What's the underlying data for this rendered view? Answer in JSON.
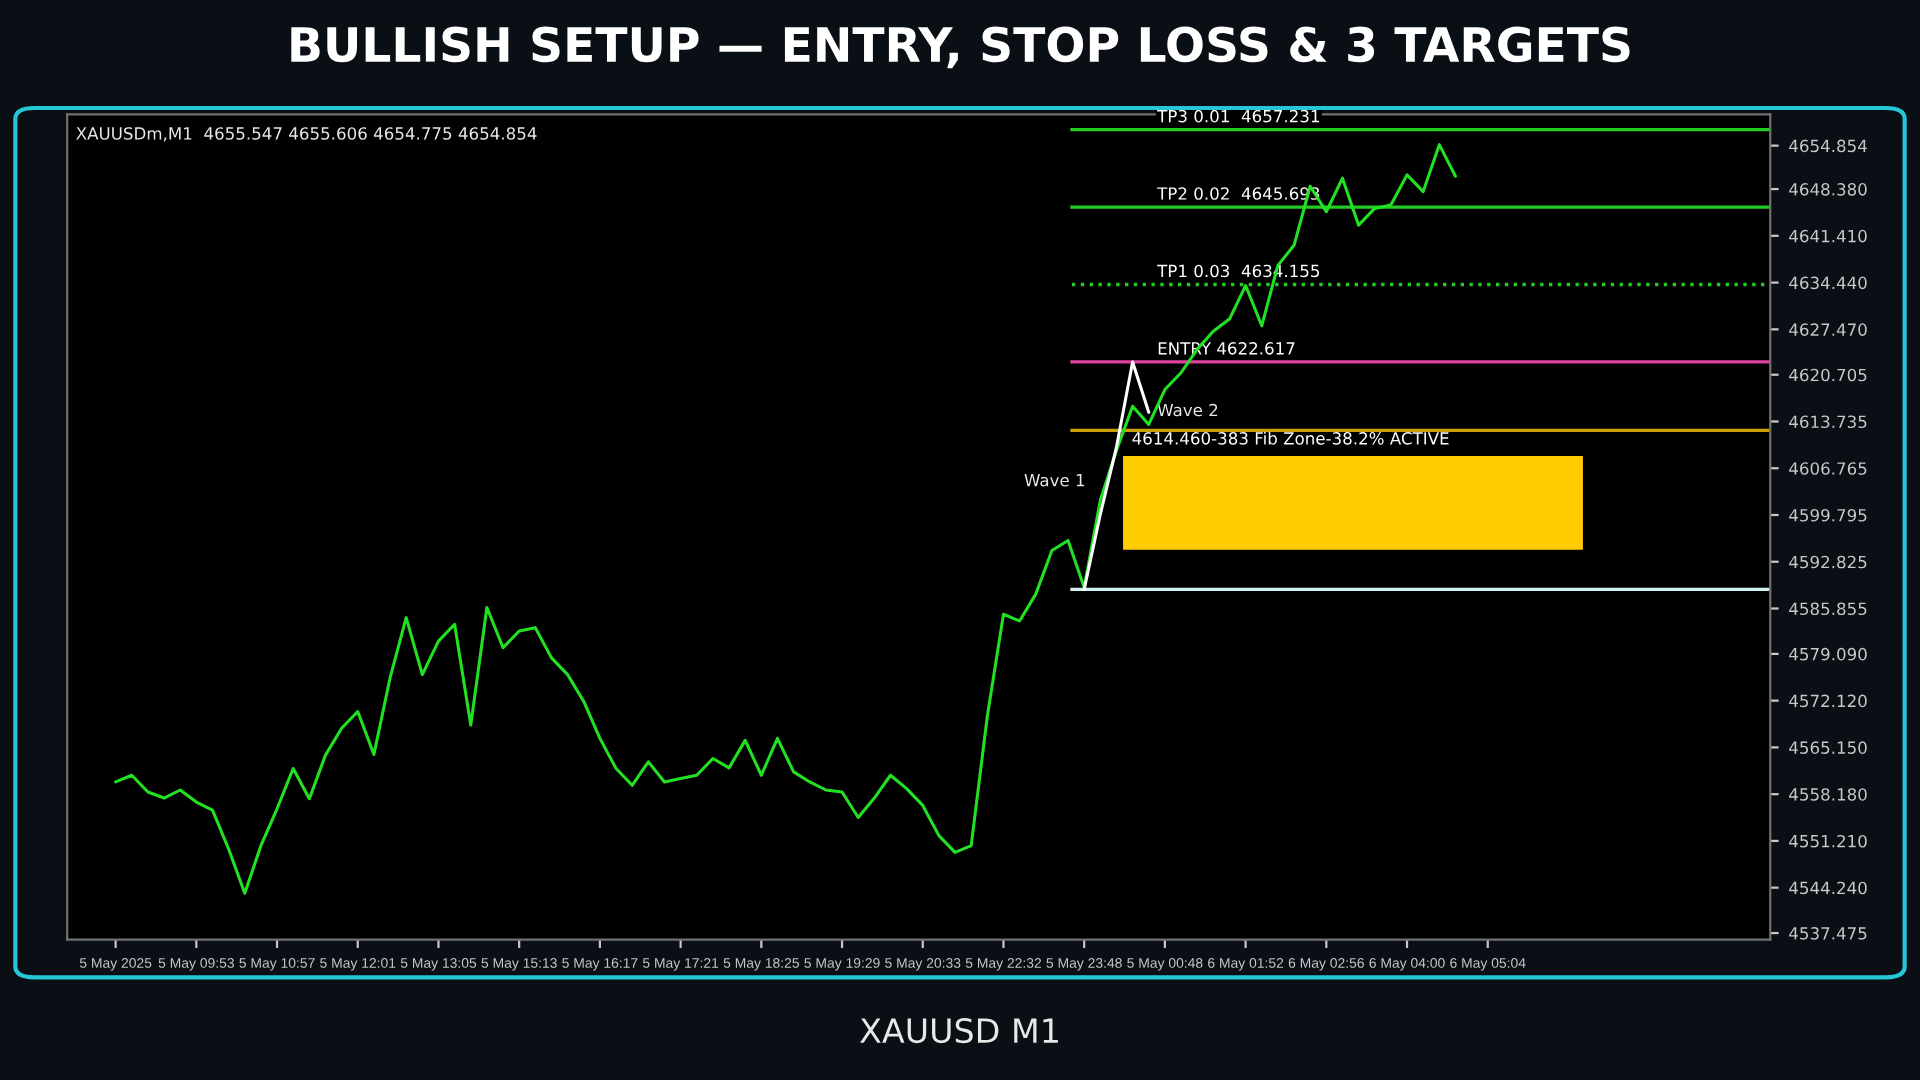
{
  "chart_data": {
    "type": "line",
    "title": "BULLISH SETUP — ENTRY, STOP LOSS & 3 TARGETS",
    "categories": [
      "5 May 2025",
      null,
      null,
      null,
      null,
      "5 May 09:53",
      null,
      null,
      null,
      null,
      "5 May 10:57",
      null,
      null,
      null,
      null,
      "5 May 12:01",
      null,
      null,
      null,
      null,
      "5 May 13:05",
      null,
      null,
      null,
      null,
      "5 May 15:13",
      null,
      null,
      null,
      null,
      "5 May 16:17",
      null,
      null,
      null,
      null,
      "5 May 17:21",
      null,
      null,
      null,
      null,
      "5 May 18:25",
      null,
      null,
      null,
      null,
      "5 May 19:29",
      null,
      null,
      null,
      null,
      "5 May 20:33",
      null,
      null,
      null,
      null,
      "5 May 22:32",
      null,
      null,
      null,
      null,
      "5 May 23:48",
      null,
      null,
      null,
      null,
      "5 May 00:48",
      null,
      null,
      null,
      null,
      "6 May 01:52",
      null,
      null,
      null,
      null,
      "6 May 02:56",
      null,
      null,
      null,
      null,
      "6 May 04:00",
      null,
      null,
      null,
      null,
      "6 May 05:04",
      null,
      null,
      null,
      null,
      null,
      null,
      null,
      null,
      null,
      null,
      null,
      null,
      null,
      null,
      null,
      null,
      null
    ],
    "series": [
      {
        "color": "#22e022",
        "values": [
          4560.0,
          4561.0,
          4558.5,
          4557.6,
          4558.8,
          4557.0,
          4555.8,
          4550.0,
          4543.4,
          4550.5,
          4556.0,
          4562.0,
          4557.5,
          4564.0,
          4568.0,
          4570.5,
          4564.1,
          4575.5,
          4584.5,
          4576.0,
          4581.0,
          4583.5,
          4568.5,
          4586.0,
          4580.0,
          4582.5,
          4583.0,
          4578.5,
          4576.0,
          4572.0,
          4566.5,
          4562.0,
          4559.5,
          4563.0,
          4560.0,
          4560.5,
          4561.0,
          4563.5,
          4562.1,
          4566.2,
          4561.0,
          4566.5,
          4561.5,
          4560.0,
          4558.8,
          4558.5,
          4554.7,
          4557.6,
          4561.0,
          4559.0,
          4556.5,
          4552.0,
          4549.5,
          4550.5,
          4569.8,
          4585.0,
          4584.0,
          4588.0,
          4594.5,
          4596.0,
          4589.0,
          4602.0,
          4609.4,
          4616.0,
          4613.3,
          4618.5,
          4621.0,
          4624.5,
          4627.2,
          4629.0,
          4634.0,
          4628.0,
          4637.0,
          4640.0,
          4648.8,
          4645.0,
          4650.0,
          4643.0,
          4645.5,
          4646.0,
          4650.5,
          4648.0,
          4655.0,
          4650.3,
          null,
          null,
          null,
          null,
          null,
          null,
          null,
          null,
          null,
          null,
          null,
          null,
          null,
          null,
          null,
          null,
          null,
          null,
          null
        ]
      },
      {
        "color": "#ffffff",
        "values": [
          null,
          null,
          null,
          null,
          null,
          null,
          null,
          null,
          null,
          null,
          null,
          null,
          null,
          null,
          null,
          null,
          null,
          null,
          null,
          null,
          null,
          null,
          null,
          null,
          null,
          null,
          null,
          null,
          null,
          null,
          null,
          null,
          null,
          null,
          null,
          null,
          null,
          null,
          null,
          null,
          null,
          null,
          null,
          null,
          null,
          null,
          null,
          null,
          null,
          null,
          null,
          null,
          null,
          null,
          null,
          null,
          null,
          null,
          null,
          null,
          4588.7,
          4599.9,
          4609.9,
          4622.6,
          4615.1,
          null,
          null,
          null,
          null,
          null,
          null,
          null,
          null,
          null,
          null,
          null,
          null,
          null,
          null,
          null,
          null,
          null,
          null,
          null,
          null,
          null,
          null,
          null,
          null,
          null,
          null,
          null,
          null,
          null,
          null,
          null,
          null,
          null,
          null,
          null,
          null,
          null,
          null
        ]
      }
    ],
    "ylim": [
      4536.5,
      4659.5
    ],
    "yticks": [
      {
        "value": 4537.475,
        "label": "4537.475"
      },
      {
        "value": 4544.24,
        "label": "4544.240"
      },
      {
        "value": 4551.21,
        "label": "4551.210"
      },
      {
        "value": 4558.18,
        "label": "4558.180"
      },
      {
        "value": 4565.15,
        "label": "4565.150"
      },
      {
        "value": 4572.12,
        "label": "4572.120"
      },
      {
        "value": 4579.09,
        "label": "4579.090"
      },
      {
        "value": 4585.855,
        "label": "4585.855"
      },
      {
        "value": 4592.825,
        "label": "4592.825"
      },
      {
        "value": 4599.795,
        "label": "4599.795"
      },
      {
        "value": 4606.765,
        "label": "4606.765"
      },
      {
        "value": 4613.735,
        "label": "4613.735"
      },
      {
        "value": 4620.705,
        "label": "4620.705"
      },
      {
        "value": 4627.47,
        "label": "4627.470"
      },
      {
        "value": 4634.44,
        "label": "4634.440"
      },
      {
        "value": 4641.41,
        "label": "4641.410"
      },
      {
        "value": 4648.38,
        "label": "4648.380"
      },
      {
        "value": 4654.854,
        "label": "4654.854"
      }
    ],
    "ref_lines": [
      {
        "axis": "y",
        "value": 4657.231,
        "label": "TP3 0.01  4657.231",
        "color": "#22cc22",
        "line_style": "solid"
      },
      {
        "axis": "y",
        "value": 4645.693,
        "label": "TP2 0.02  4645.693",
        "color": "#22cc22",
        "line_style": "solid"
      },
      {
        "axis": "y",
        "value": 4634.155,
        "label": "TP1 0.03  4634.155",
        "color": "#22cc22",
        "line_style": "dotted"
      },
      {
        "axis": "y",
        "value": 4622.617,
        "label": "ENTRY 4622.617",
        "color": "#e040a0",
        "line_style": "solid"
      },
      {
        "axis": "y",
        "value": 4612.4,
        "color": "#c8a000",
        "line_style": "solid"
      },
      {
        "axis": "y",
        "value": 4588.7,
        "color": "#d0f0f0",
        "line_style": "solid"
      }
    ],
    "bands": [
      {
        "axis": "y",
        "from": 4594.6,
        "to": 4608.6,
        "label": "4614.460-383 Fib Zone-38.2% ACTIVE",
        "color": "#ffcc00"
      }
    ],
    "annotations": [
      "XAUUSDm,M1  4655.547 4655.606 4654.775 4654.854",
      "Wave 2",
      "Wave 1",
      "XAUUSD M1"
    ],
    "grid": false,
    "legend": false
  }
}
